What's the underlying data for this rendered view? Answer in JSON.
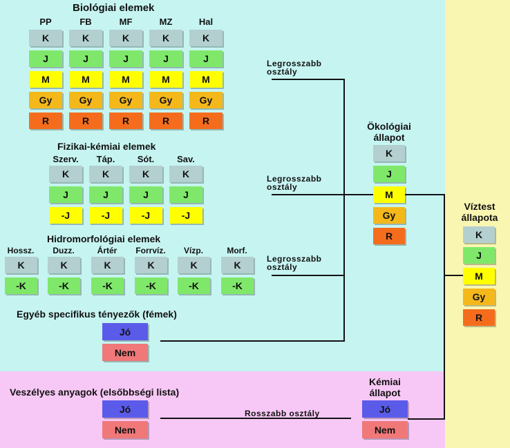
{
  "colors": {
    "K": "#b3cfcf",
    "J": "#7fe86a",
    "M": "#ffff00",
    "Gy": "#f4b81b",
    "R": "#f56d1c",
    "minusJ": "#ffff00",
    "minusK": "#7fe86a",
    "jo": "#5b5bea",
    "nem": "#f07878",
    "cyan_bg": "#c6f4f1",
    "pink_bg": "#f7c8f5",
    "yellow_bg": "#f9f6b2"
  },
  "bio": {
    "title": "Biológiai elemek",
    "columns": [
      "PP",
      "FB",
      "MF",
      "MZ",
      "Hal"
    ],
    "grades": [
      "K",
      "J",
      "M",
      "Gy",
      "R"
    ]
  },
  "fizkem": {
    "title": "Fizikai-kémiai elemek",
    "columns": [
      "Szerv.",
      "Táp.",
      "Sót.",
      "Sav."
    ],
    "grades": [
      "K",
      "J",
      "-J"
    ]
  },
  "hidro": {
    "title": "Hidromorfológiai elemek",
    "columns": [
      "Hossz.",
      "Duzz.",
      "Ártér",
      "Forrvíz.",
      "Vízp.",
      "Morf."
    ],
    "grades": [
      "K",
      "-K"
    ]
  },
  "egyeb": {
    "title": "Egyéb specifikus tényezők (fémek)",
    "options": [
      "Jó",
      "Nem"
    ]
  },
  "veszelyes": {
    "title": "Veszélyes anyagok (elsőbbségi lista)",
    "options": [
      "Jó",
      "Nem"
    ]
  },
  "connectors": {
    "worst_class_line1": "Legrosszabb",
    "worst_class_line2": "osztály",
    "worse_class": "Rosszabb osztály"
  },
  "okologiai": {
    "title_line1": "Ökológiai",
    "title_line2": "állapot",
    "grades": [
      "K",
      "J",
      "M",
      "Gy",
      "R"
    ]
  },
  "kemiai": {
    "title_line1": "Kémiai",
    "title_line2": "állapot",
    "grades": [
      "Jó",
      "Nem"
    ]
  },
  "viztest": {
    "title_line1": "Víztest",
    "title_line2": "állapota",
    "grades": [
      "K",
      "J",
      "M",
      "Gy",
      "R"
    ]
  }
}
